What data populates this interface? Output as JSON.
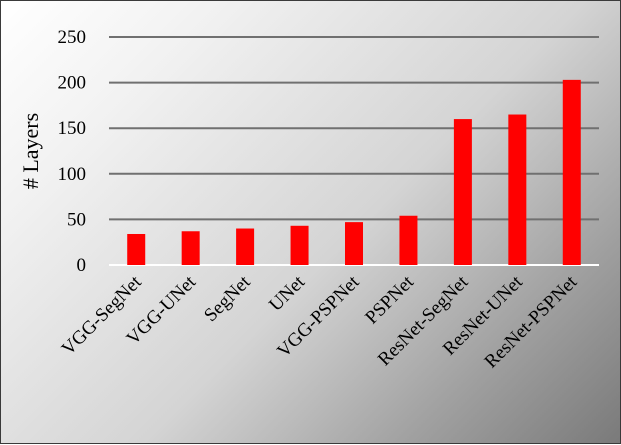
{
  "chart_data": {
    "type": "bar",
    "categories": [
      "VGG-SegNet",
      "VGG-UNet",
      "SegNet",
      "UNet",
      "VGG-PSPNet",
      "PSPNet",
      "ResNet-SegNet",
      "ResNet-UNet",
      "ResNet-PSPNet"
    ],
    "values": [
      34,
      37,
      40,
      43,
      47,
      54,
      160,
      165,
      203
    ],
    "ylabel": "# Layers",
    "ylim": [
      0,
      250
    ],
    "yticks": [
      0,
      50,
      100,
      150,
      200,
      250
    ],
    "grid": true,
    "bar_color": "#ff0000",
    "grid_color": "#707070"
  }
}
